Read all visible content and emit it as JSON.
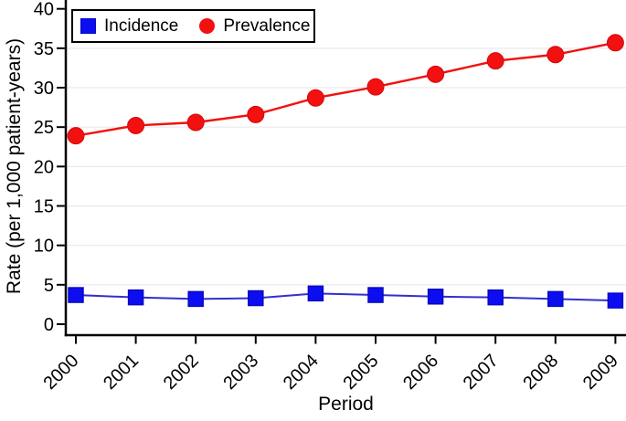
{
  "figure": {
    "background": "#ffffff",
    "text_color": "#000000"
  },
  "chart_data": {
    "type": "line",
    "title": "",
    "xlabel": "Period",
    "ylabel": "Rate (per 1,000 patient-years)",
    "x": [
      2000,
      2001,
      2002,
      2003,
      2004,
      2005,
      2006,
      2007,
      2008,
      2009
    ],
    "series": [
      {
        "name": "Incidence",
        "marker": "square",
        "color": "#0d0df2",
        "marker_border": "#0909c0",
        "line_color": "#3030cf",
        "values": [
          3.7,
          3.4,
          3.2,
          3.3,
          3.9,
          3.7,
          3.5,
          3.4,
          3.2,
          3.0
        ]
      },
      {
        "name": "Prevalence",
        "marker": "circle",
        "color": "#f21010",
        "marker_border": "#d60909",
        "line_color": "#f21010",
        "values": [
          23.9,
          25.2,
          25.6,
          26.6,
          28.7,
          30.1,
          31.7,
          33.4,
          34.2,
          35.7
        ]
      }
    ],
    "ylim": [
      0,
      40
    ],
    "yticks": [
      0,
      5,
      10,
      15,
      20,
      25,
      30,
      35,
      40
    ],
    "grid": "horizontal",
    "gridline_color": "#e9e9ef",
    "x_tick_label_angle": -45,
    "legend_position": "top-left-inside"
  },
  "legend": {
    "items": [
      {
        "label": "Incidence"
      },
      {
        "label": "Prevalence"
      }
    ]
  }
}
